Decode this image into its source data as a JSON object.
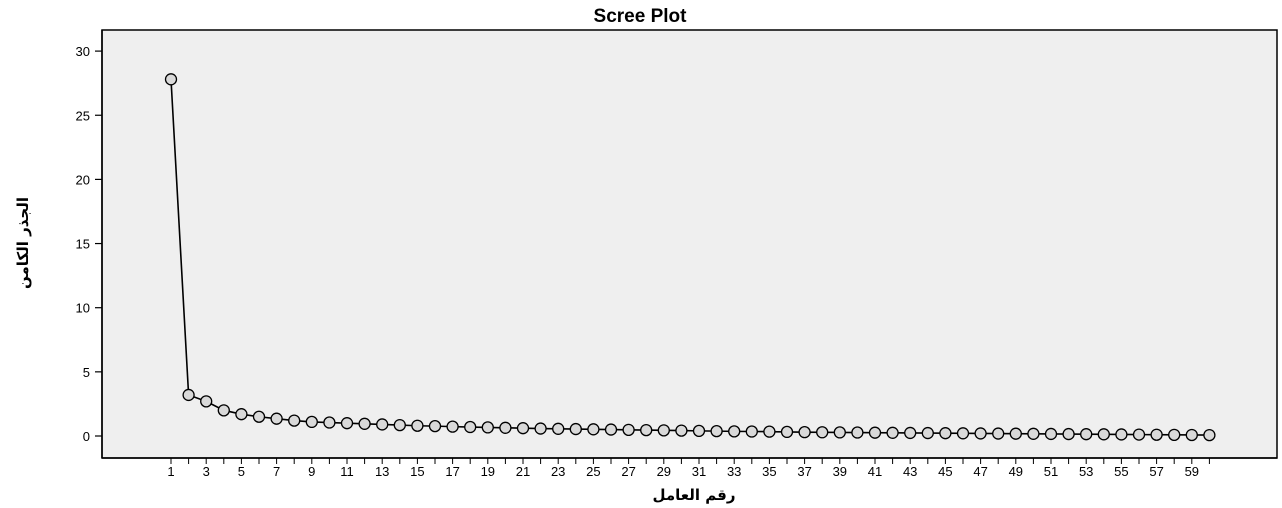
{
  "chart_data": {
    "type": "line",
    "title": "Scree Plot",
    "xlabel": "رقم العامل",
    "ylabel": "الجذر الكامن",
    "xlim": [
      1,
      60
    ],
    "ylim": [
      0,
      30
    ],
    "yticks": [
      0,
      5,
      10,
      15,
      20,
      25,
      30
    ],
    "xticks": [
      1,
      3,
      5,
      7,
      9,
      11,
      13,
      15,
      17,
      19,
      21,
      23,
      25,
      27,
      29,
      31,
      33,
      35,
      37,
      39,
      41,
      43,
      45,
      47,
      49,
      51,
      53,
      55,
      57,
      59
    ],
    "grid": false,
    "marker": "open-circle",
    "x": [
      1,
      2,
      3,
      4,
      5,
      6,
      7,
      8,
      9,
      10,
      11,
      12,
      13,
      14,
      15,
      16,
      17,
      18,
      19,
      20,
      21,
      22,
      23,
      24,
      25,
      26,
      27,
      28,
      29,
      30,
      31,
      32,
      33,
      34,
      35,
      36,
      37,
      38,
      39,
      40,
      41,
      42,
      43,
      44,
      45,
      46,
      47,
      48,
      49,
      50,
      51,
      52,
      53,
      54,
      55,
      56,
      57,
      58,
      59,
      60
    ],
    "values": [
      27.8,
      3.2,
      2.7,
      2.0,
      1.7,
      1.5,
      1.35,
      1.2,
      1.1,
      1.05,
      1.0,
      0.95,
      0.9,
      0.85,
      0.8,
      0.77,
      0.73,
      0.7,
      0.67,
      0.64,
      0.61,
      0.58,
      0.56,
      0.54,
      0.52,
      0.5,
      0.48,
      0.46,
      0.44,
      0.42,
      0.4,
      0.38,
      0.36,
      0.35,
      0.34,
      0.32,
      0.3,
      0.29,
      0.28,
      0.27,
      0.26,
      0.25,
      0.24,
      0.23,
      0.22,
      0.21,
      0.2,
      0.19,
      0.18,
      0.17,
      0.16,
      0.15,
      0.14,
      0.13,
      0.12,
      0.11,
      0.1,
      0.09,
      0.08,
      0.07
    ],
    "colors": {
      "plot_background": "#efefef",
      "line": "#000000",
      "marker_fill": "#d9d9d9"
    }
  }
}
